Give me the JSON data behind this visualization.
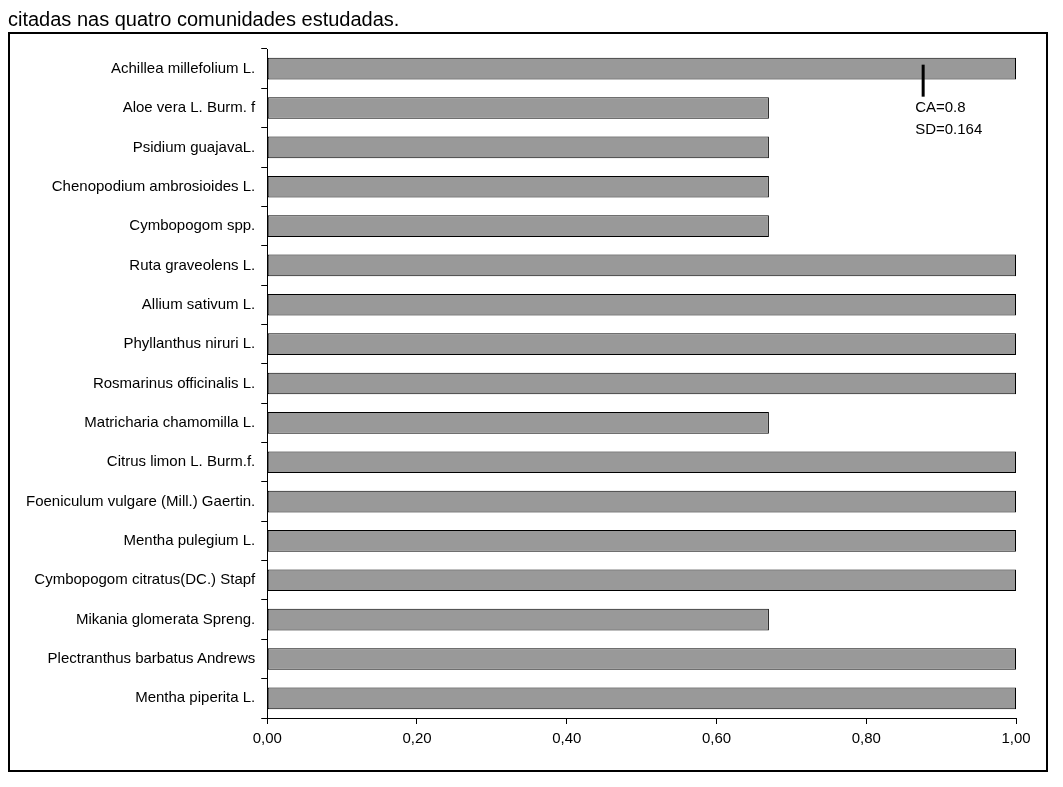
{
  "chart_data": {
    "type": "bar",
    "orientation": "horizontal",
    "title": "citadas nas quatro comunidades estudadas.",
    "categories": [
      "Achillea millefolium L.",
      "Aloe vera L. Burm. f",
      "Psidium guajavaL.",
      "Chenopodium ambrosioides L.",
      "Cymbopogom spp.",
      "Ruta graveolens L.",
      "Allium sativum L.",
      "Phyllanthus niruri L.",
      "Rosmarinus officinalis L.",
      "Matricharia chamomilla L.",
      "Citrus limon L. Burm.f.",
      "Foeniculum vulgare (Mill.) Gaertin.",
      "Mentha pulegium L.",
      "Cymbopogom citratus(DC.) Stapf",
      "Mikania glomerata Spreng.",
      "Plectranthus barbatus Andrews",
      "Mentha piperita L."
    ],
    "values": [
      1,
      0.67,
      0.67,
      0.67,
      0.67,
      1,
      1,
      1,
      1,
      0.67,
      1,
      1,
      1,
      1,
      0.67,
      1,
      1
    ],
    "color": "#999999",
    "xlim": [
      0,
      1
    ],
    "xticks": [
      {
        "value": 0,
        "label": "0,00"
      },
      {
        "value": 0.2,
        "label": "0,20"
      },
      {
        "value": 0.4,
        "label": "0,40"
      },
      {
        "value": 0.6,
        "label": "0,60"
      },
      {
        "value": 0.8,
        "label": "0,80"
      },
      {
        "value": 1,
        "label": "1,00"
      }
    ],
    "grid": false,
    "legend": false,
    "annotations": [
      "CA=0.8\nSD=0.164"
    ]
  }
}
